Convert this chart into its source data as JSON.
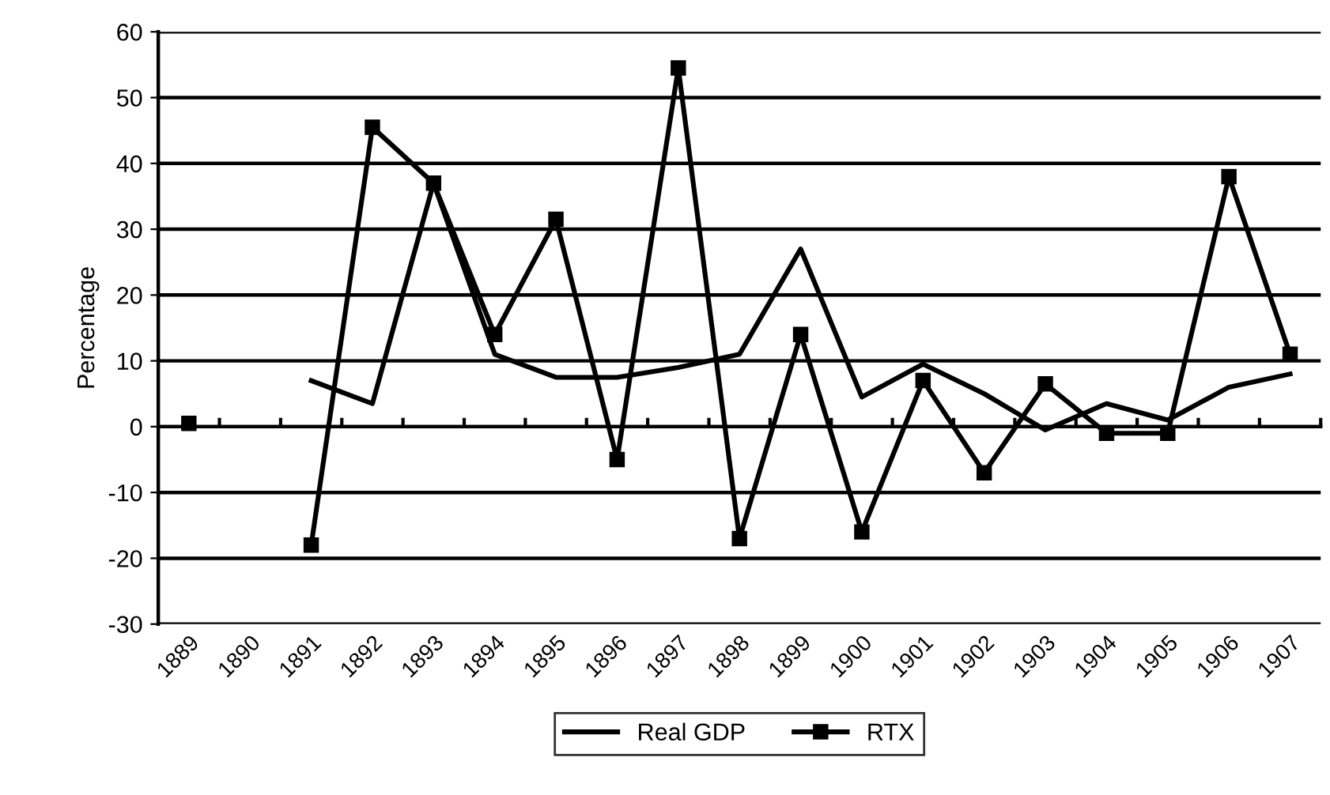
{
  "chart_data": {
    "type": "line",
    "ylabel": "Percentage",
    "categories": [
      "1889",
      "1890",
      "1891",
      "1892",
      "1893",
      "1894",
      "1895",
      "1896",
      "1897",
      "1898",
      "1899",
      "1900",
      "1901",
      "1902",
      "1903",
      "1904",
      "1905",
      "1906",
      "1907"
    ],
    "series": [
      {
        "name": "Real GDP",
        "color": "#000000",
        "marker": "none",
        "values": [
          null,
          null,
          7,
          3.5,
          37,
          11,
          7.5,
          7.5,
          9,
          11,
          27,
          4.5,
          9.5,
          5,
          -0.5,
          3.5,
          1,
          6,
          8
        ]
      },
      {
        "name": "RTX",
        "color": "#000000",
        "marker": "square",
        "values": [
          0.5,
          null,
          -18,
          45.5,
          37,
          14,
          31.5,
          -5,
          54.5,
          -17,
          14,
          -16,
          7,
          -7,
          6.5,
          -1,
          -1,
          38,
          11
        ]
      }
    ],
    "ylim": [
      -30,
      60
    ],
    "yticks": [
      -30,
      -20,
      -10,
      0,
      10,
      20,
      30,
      40,
      50,
      60
    ],
    "grid": "y",
    "legend": "bottom",
    "line_style": "solid"
  }
}
